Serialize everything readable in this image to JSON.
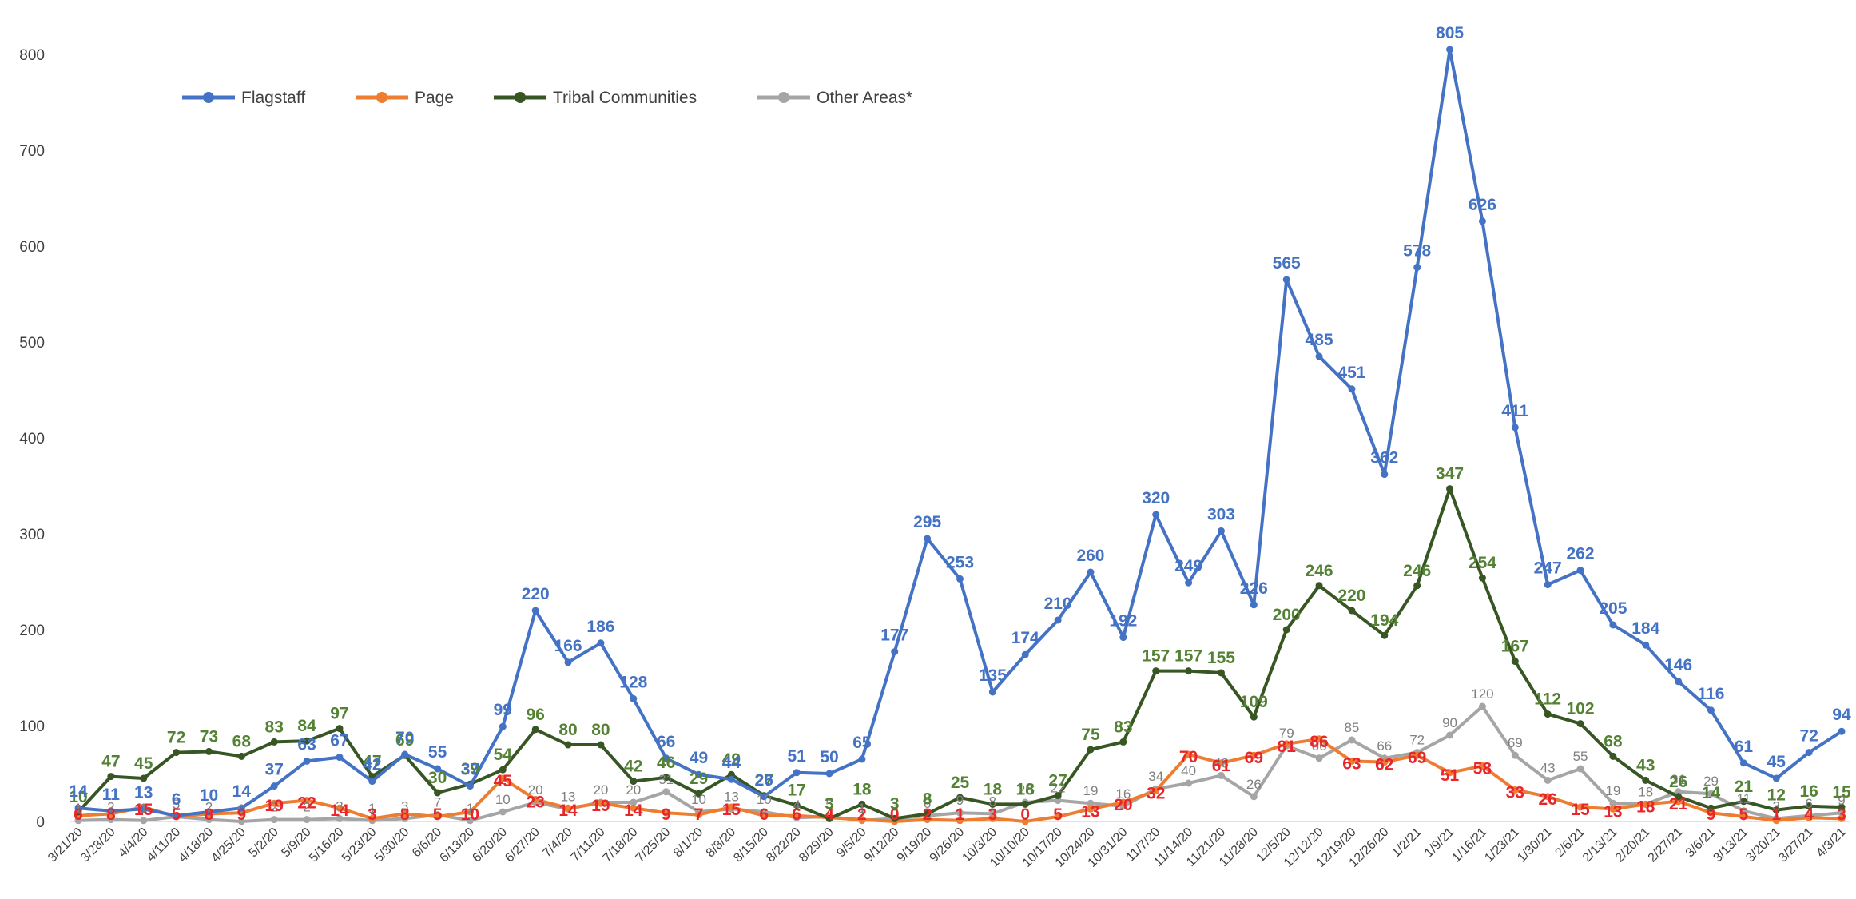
{
  "chart_data": {
    "type": "line",
    "title": "",
    "xlabel": "",
    "ylabel": "",
    "ylim": [
      0,
      800
    ],
    "yticks": [
      0,
      100,
      200,
      300,
      400,
      500,
      600,
      700,
      800
    ],
    "grid": false,
    "legend_position": "top-left",
    "x": [
      "3/21/20",
      "3/28/20",
      "4/4/20",
      "4/11/20",
      "4/18/20",
      "4/25/20",
      "5/2/20",
      "5/9/20",
      "5/16/20",
      "5/23/20",
      "5/30/20",
      "6/6/20",
      "6/13/20",
      "6/20/20",
      "6/27/20",
      "7/4/20",
      "7/11/20",
      "7/18/20",
      "7/25/20",
      "8/1/20",
      "8/8/20",
      "8/15/20",
      "8/22/20",
      "8/29/20",
      "9/5/20",
      "9/12/20",
      "9/19/20",
      "9/26/20",
      "10/3/20",
      "10/10/20",
      "10/17/20",
      "10/24/20",
      "10/31/20",
      "11/7/20",
      "11/14/20",
      "11/21/20",
      "11/28/20",
      "12/5/20",
      "12/12/20",
      "12/19/20",
      "12/26/20",
      "1/2/21",
      "1/9/21",
      "1/16/21",
      "1/23/21",
      "1/30/21",
      "2/6/21",
      "2/13/21",
      "2/20/21",
      "2/27/21",
      "3/6/21",
      "3/13/21",
      "3/20/21",
      "3/27/21",
      "4/3/21"
    ],
    "series": [
      {
        "name": "Flagstaff",
        "color": "#4472C4",
        "label_color": "#4472C4",
        "values": [
          14,
          11,
          13,
          6,
          10,
          14,
          37,
          63,
          67,
          42,
          70,
          55,
          37,
          99,
          220,
          166,
          186,
          128,
          66,
          49,
          44,
          26,
          51,
          50,
          65,
          177,
          295,
          253,
          135,
          174,
          210,
          260,
          192,
          320,
          249,
          303,
          226,
          565,
          485,
          451,
          362,
          578,
          805,
          626,
          411,
          247,
          262,
          205,
          184,
          146,
          116,
          61,
          45,
          72,
          94
        ]
      },
      {
        "name": "Page",
        "color": "#ED7D31",
        "label_color": "#E8252A",
        "values": [
          6,
          8,
          15,
          5,
          8,
          9,
          19,
          22,
          14,
          3,
          8,
          5,
          10,
          45,
          23,
          14,
          19,
          14,
          9,
          7,
          15,
          6,
          6,
          4,
          2,
          0,
          2,
          1,
          3,
          0,
          5,
          13,
          20,
          32,
          70,
          61,
          69,
          81,
          86,
          63,
          62,
          69,
          51,
          58,
          33,
          26,
          15,
          13,
          18,
          21,
          9,
          5,
          1,
          4,
          3
        ]
      },
      {
        "name": "Tribal Communities",
        "color": "#375623",
        "label_color": "#548235",
        "values": [
          10,
          47,
          45,
          72,
          73,
          68,
          83,
          84,
          97,
          47,
          69,
          30,
          39,
          54,
          96,
          80,
          80,
          42,
          46,
          29,
          49,
          27,
          17,
          3,
          18,
          3,
          8,
          25,
          18,
          18,
          27,
          75,
          83,
          157,
          157,
          155,
          109,
          200,
          246,
          220,
          194,
          246,
          347,
          254,
          167,
          112,
          102,
          68,
          43,
          26,
          14,
          21,
          12,
          16,
          15
        ]
      },
      {
        "name": "Other Areas*",
        "color": "#A5A5A5",
        "label_color": "#808080",
        "values": [
          1,
          2,
          1,
          5,
          2,
          0,
          2,
          2,
          3,
          1,
          3,
          7,
          1,
          10,
          20,
          13,
          20,
          20,
          31,
          10,
          13,
          10,
          4,
          5,
          1,
          3,
          6,
          9,
          8,
          20,
          22,
          19,
          16,
          34,
          40,
          48,
          26,
          79,
          66,
          85,
          66,
          72,
          90,
          120,
          69,
          43,
          55,
          19,
          18,
          31,
          29,
          11,
          3,
          6,
          9
        ]
      }
    ]
  }
}
